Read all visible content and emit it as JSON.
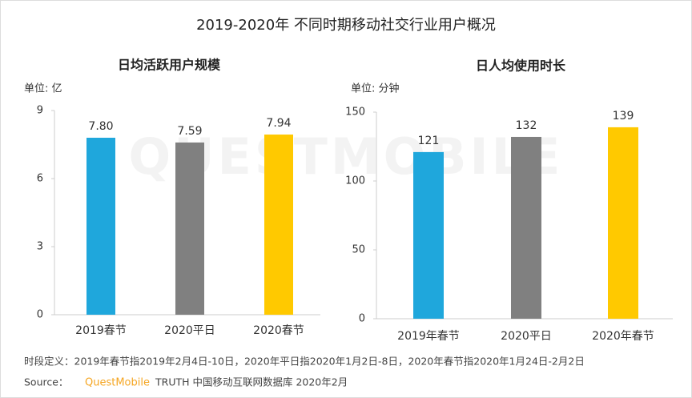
{
  "title": "2019-2020年 不同时期移动社交行业用户概况",
  "watermark": "QUESTMOBILE",
  "chart_data": [
    {
      "type": "bar",
      "title": "日均活跃用户规模",
      "unit_label": "单位: 亿",
      "categories": [
        "2019春节",
        "2020平日",
        "2020春节"
      ],
      "values": [
        7.8,
        7.59,
        7.94
      ],
      "value_labels": [
        "7.80",
        "7.59",
        "7.94"
      ],
      "colors": [
        "#1fa7dc",
        "#808080",
        "#ffc900"
      ],
      "ylim": [
        0,
        9
      ],
      "yticks": [
        0,
        3,
        6,
        9
      ],
      "grid": false
    },
    {
      "type": "bar",
      "title": "日人均使用时长",
      "unit_label": "单位: 分钟",
      "categories": [
        "2019年春节",
        "2020平日",
        "2020年春节"
      ],
      "values": [
        121,
        132,
        139
      ],
      "colors": [
        "#1fa7dc",
        "#808080",
        "#ffc900"
      ],
      "ylim": [
        0,
        150
      ],
      "yticks": [
        0,
        50,
        100,
        150
      ],
      "grid": false
    }
  ],
  "note": "时段定义：2019年春节指2019年2月4日-10日，2020年平日指2020年1月2日-8日，2020年春节指2020年1月24日-2月2日",
  "source": {
    "label": "Source：",
    "brand": "QuestMobile",
    "text": "TRUTH 中国移动互联网数据库 2020年2月"
  }
}
